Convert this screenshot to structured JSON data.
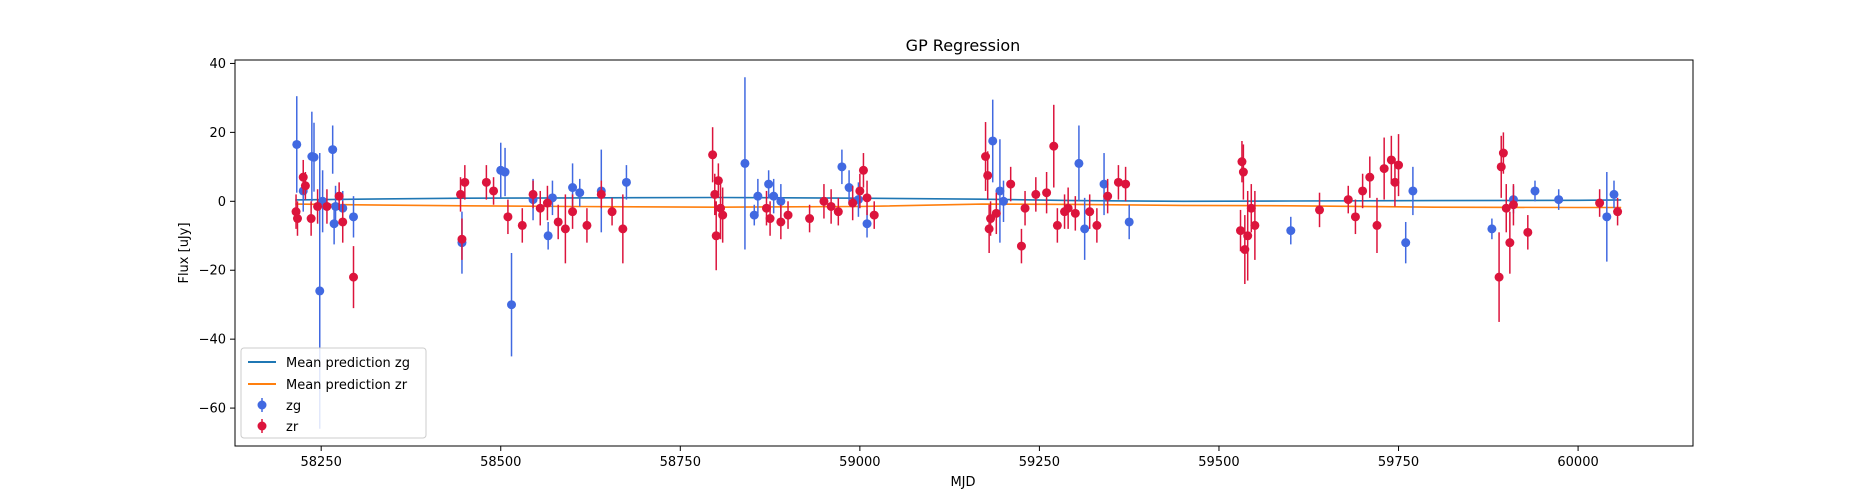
{
  "chart_data": {
    "type": "scatter",
    "title": "GP Regression",
    "xlabel": "MJD",
    "ylabel": "Flux [uJy]",
    "xlim": [
      58130,
      60160
    ],
    "ylim": [
      -71,
      41
    ],
    "xticks": [
      58250,
      58500,
      58750,
      59000,
      59250,
      59500,
      59750,
      60000
    ],
    "xtick_labels": [
      "58250",
      "58500",
      "58750",
      "59000",
      "59250",
      "59500",
      "59750",
      "60000"
    ],
    "yticks": [
      -60,
      -40,
      -20,
      0,
      20,
      40
    ],
    "ytick_labels": [
      "−60",
      "−40",
      "−20",
      "0",
      "20",
      "40"
    ],
    "legend": {
      "location": "lower-left",
      "entries": [
        {
          "label": "Mean prediction zg",
          "kind": "line",
          "color": "#1f77b4"
        },
        {
          "label": "Mean prediction zr",
          "kind": "line",
          "color": "#ff7f0e"
        },
        {
          "label": "zg",
          "kind": "errorbar",
          "color": "#4169e1"
        },
        {
          "label": "zr",
          "kind": "errorbar",
          "color": "#dc143c"
        }
      ]
    },
    "lines": [
      {
        "name": "Mean prediction zg",
        "color": "#1f77b4",
        "x": [
          58214,
          58300,
          58450,
          58600,
          58800,
          59000,
          59170,
          59300,
          59450,
          59600,
          59800,
          60000,
          60060
        ],
        "y": [
          0.4,
          0.6,
          0.9,
          1.0,
          1.1,
          0.9,
          0.6,
          0.2,
          0.0,
          0.1,
          0.2,
          0.3,
          0.4
        ]
      },
      {
        "name": "Mean prediction zr",
        "color": "#ff7f0e",
        "x": [
          58214,
          58300,
          58450,
          58600,
          58800,
          59000,
          59170,
          59300,
          59450,
          59600,
          59800,
          60000,
          60060
        ],
        "y": [
          -0.8,
          -1.0,
          -1.3,
          -1.5,
          -1.7,
          -1.5,
          -0.8,
          -0.9,
          -1.2,
          -1.3,
          -1.7,
          -1.8,
          -1.8
        ]
      }
    ],
    "series": [
      {
        "name": "zg",
        "color": "#4169e1",
        "x": [
          58216,
          58225,
          58237,
          58240,
          58248,
          58252,
          58266,
          58268,
          58270,
          58280,
          58295,
          58446,
          58500,
          58506,
          58515,
          58545,
          58566,
          58572,
          58600,
          58610,
          58640,
          58675,
          58840,
          58853,
          58858,
          58873,
          58880,
          58890,
          58975,
          58985,
          58998,
          59010,
          59185,
          59195,
          59200,
          59305,
          59313,
          59340,
          59375,
          59600,
          59760,
          59770,
          59880,
          59910,
          59940,
          59973,
          60040,
          60050
        ],
        "y": [
          16.5,
          3.0,
          13.0,
          12.8,
          -26.0,
          0.0,
          15.0,
          -6.5,
          -1.5,
          -2.0,
          -4.5,
          -12.0,
          9.0,
          8.5,
          -30.0,
          0.5,
          -10.0,
          1.0,
          4.0,
          2.5,
          3.0,
          5.5,
          11.0,
          -4.0,
          1.5,
          5.0,
          1.5,
          0.0,
          10.0,
          4.0,
          0.5,
          -6.5,
          17.5,
          3.0,
          0.0,
          11.0,
          -8.0,
          5.0,
          -6.0,
          -8.5,
          -12.0,
          3.0,
          -8.0,
          0.5,
          3.0,
          0.5,
          -4.5,
          2.0
        ],
        "err": [
          14,
          6,
          13,
          10,
          40,
          9,
          7,
          6,
          6,
          5,
          6,
          9,
          8,
          7,
          15,
          6,
          4,
          5,
          7,
          4,
          12,
          5,
          25,
          3,
          5,
          4,
          5,
          5,
          5,
          5,
          5,
          4,
          12,
          15,
          6,
          11,
          9,
          9,
          5,
          4,
          6,
          7,
          3,
          4,
          3,
          3,
          13,
          4
        ]
      },
      {
        "name": "zr",
        "color": "#dc143c",
        "x": [
          58215,
          58217,
          58225,
          58228,
          58236,
          58245,
          58258,
          58275,
          58280,
          58295,
          58444,
          58446,
          58450,
          58480,
          58490,
          58510,
          58530,
          58545,
          58555,
          58565,
          58580,
          58590,
          58600,
          58620,
          58640,
          58655,
          58670,
          58795,
          58798,
          58800,
          58803,
          58806,
          58809,
          58870,
          58875,
          58890,
          58900,
          58930,
          58950,
          58960,
          58970,
          58990,
          59000,
          59005,
          59010,
          59020,
          59175,
          59178,
          59180,
          59182,
          59190,
          59210,
          59225,
          59230,
          59245,
          59260,
          59270,
          59275,
          59285,
          59290,
          59300,
          59320,
          59330,
          59345,
          59360,
          59370,
          59530,
          59532,
          59534,
          59536,
          59540,
          59545,
          59550,
          59640,
          59680,
          59690,
          59700,
          59710,
          59720,
          59730,
          59740,
          59745,
          59750,
          59890,
          59893,
          59896,
          59900,
          59905,
          59910,
          59930,
          60030,
          60055
        ],
        "y": [
          -3.0,
          -5.0,
          7.0,
          4.5,
          -5.0,
          -1.5,
          -1.5,
          1.5,
          -6.0,
          -22.0,
          2.0,
          -11.0,
          5.5,
          5.5,
          3.0,
          -4.5,
          -7.0,
          2.0,
          -2.0,
          -0.5,
          -6.0,
          -8.0,
          -3.0,
          -7.0,
          2.0,
          -3.0,
          -8.0,
          13.5,
          2.0,
          -10.0,
          6.0,
          -2.0,
          -4.0,
          -2.0,
          -5.0,
          -6.0,
          -4.0,
          -5.0,
          0.0,
          -1.5,
          -3.0,
          -0.5,
          3.0,
          9.0,
          1.0,
          -4.0,
          13.0,
          7.5,
          -8.0,
          -5.0,
          -3.5,
          5.0,
          -13.0,
          -2.0,
          2.0,
          2.5,
          16.0,
          -7.0,
          -3.0,
          -2.0,
          -3.5,
          -3.0,
          -7.0,
          1.5,
          5.5,
          5.0,
          -8.5,
          11.5,
          8.5,
          -14.0,
          -10.0,
          -2.0,
          -7.0,
          -2.5,
          0.5,
          -4.5,
          3.0,
          7.0,
          -7.0,
          9.5,
          12.0,
          5.5,
          10.5,
          -22.0,
          10.0,
          14.0,
          -2.0,
          -12.0,
          -1.0,
          -9.0,
          -0.5,
          -3.0
        ],
        "err": [
          5,
          5,
          5,
          4,
          5,
          5,
          5,
          4,
          6,
          9,
          5,
          6,
          5,
          5,
          4,
          5,
          5,
          4,
          5,
          5,
          5,
          10,
          5,
          5,
          4,
          4,
          10,
          8,
          6,
          10,
          5,
          9,
          8,
          5,
          5,
          5,
          4,
          4,
          5,
          5,
          4,
          5,
          5,
          5,
          5,
          4,
          10,
          7,
          7,
          5,
          6,
          5,
          5,
          5,
          5,
          6,
          12,
          5,
          5,
          6,
          5,
          5,
          5,
          5,
          5,
          5,
          6,
          6,
          8,
          10,
          13,
          7,
          10,
          5,
          4,
          5,
          5,
          6,
          8,
          9,
          7,
          7,
          9,
          13,
          9,
          6,
          7,
          9,
          6,
          5,
          4,
          4
        ]
      }
    ]
  }
}
